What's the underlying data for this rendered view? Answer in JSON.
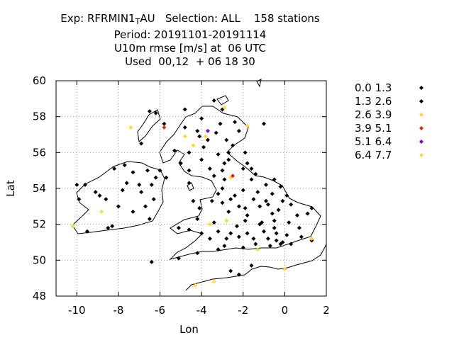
{
  "header": {
    "line1": "Exp: RFRMIN1_TAU   Selection: ALL    158 stations",
    "line2": "Period: 20191101-20191114",
    "line3": "U10m rmse [m/s] at  06 UTC",
    "line4": "Used  00,12  + 06 18 30"
  },
  "chart_data": {
    "type": "scatter",
    "title": "U10m rmse [m/s] at  06 UTC",
    "xlabel": "Lon",
    "ylabel": "Lat",
    "xlim": [
      -11,
      2
    ],
    "ylim": [
      48,
      60
    ],
    "xticks": [
      -10,
      -8,
      -6,
      -4,
      -2,
      0,
      2
    ],
    "yticks": [
      48,
      50,
      52,
      54,
      56,
      58,
      60
    ],
    "xtick_labels": [
      "-10",
      "-8",
      "-6",
      "-4",
      "-2",
      "0",
      "2"
    ],
    "ytick_labels": [
      "48",
      "50",
      "52",
      "54",
      "56",
      "58",
      "60"
    ],
    "grid": true,
    "legend_position": "right",
    "background": "coastline map of the British Isles",
    "series": [
      {
        "name": "0.0 1.3",
        "color": "#000000",
        "points": [
          [
            -3.4,
            58.9
          ],
          [
            -6.2,
            58.2
          ],
          [
            -3.0,
            58.4
          ],
          [
            -5.8,
            57.6
          ],
          [
            -4.8,
            57.4
          ],
          [
            -4.2,
            57.2
          ],
          [
            -3.3,
            57.1
          ],
          [
            -2.2,
            57.2
          ],
          [
            -4.1,
            56.9
          ],
          [
            -2.8,
            56.7
          ],
          [
            -2.5,
            56.4
          ],
          [
            -3.9,
            56.3
          ],
          [
            -5.3,
            56.1
          ],
          [
            -6.9,
            56.5
          ],
          [
            -4.6,
            56.0
          ],
          [
            -3.2,
            55.9
          ],
          [
            -1.9,
            56.0
          ],
          [
            -2.7,
            55.6
          ],
          [
            -4.0,
            55.6
          ],
          [
            -5.0,
            55.4
          ],
          [
            -3.6,
            55.1
          ],
          [
            -2.0,
            55.1
          ],
          [
            -4.6,
            55.0
          ],
          [
            -3.0,
            55.0
          ],
          [
            -1.6,
            55.1
          ],
          [
            -1.4,
            54.8
          ],
          [
            -2.9,
            54.5
          ],
          [
            -4.6,
            54.3
          ],
          [
            -1.6,
            54.5
          ],
          [
            -0.9,
            54.2
          ],
          [
            -0.5,
            54.5
          ],
          [
            -0.2,
            54.1
          ],
          [
            -3.0,
            54.0
          ],
          [
            -2.0,
            53.9
          ],
          [
            -1.3,
            53.8
          ],
          [
            -0.6,
            53.7
          ],
          [
            0.1,
            53.6
          ],
          [
            -2.6,
            53.4
          ],
          [
            -1.5,
            53.4
          ],
          [
            -0.9,
            53.3
          ],
          [
            -0.1,
            53.3
          ],
          [
            0.3,
            53.1
          ],
          [
            -1.2,
            53.0
          ],
          [
            -2.2,
            53.0
          ],
          [
            -3.0,
            53.2
          ],
          [
            -3.5,
            53.3
          ],
          [
            -4.4,
            53.3
          ],
          [
            -4.1,
            52.9
          ],
          [
            -2.7,
            52.7
          ],
          [
            -1.8,
            52.5
          ],
          [
            -0.6,
            52.6
          ],
          [
            0.6,
            52.5
          ],
          [
            1.1,
            52.6
          ],
          [
            1.3,
            52.9
          ],
          [
            -0.5,
            52.2
          ],
          [
            0.2,
            52.1
          ],
          [
            -1.2,
            52.0
          ],
          [
            -2.3,
            51.9
          ],
          [
            -3.4,
            52.1
          ],
          [
            -4.2,
            52.3
          ],
          [
            -3.2,
            51.6
          ],
          [
            -2.6,
            51.5
          ],
          [
            -1.8,
            51.5
          ],
          [
            -1.0,
            51.6
          ],
          [
            -0.4,
            51.5
          ],
          [
            0.1,
            51.4
          ],
          [
            0.8,
            51.3
          ],
          [
            1.3,
            51.1
          ],
          [
            -4.0,
            51.5
          ],
          [
            -4.6,
            51.7
          ],
          [
            -5.1,
            51.8
          ],
          [
            -3.6,
            51.2
          ],
          [
            -2.8,
            51.2
          ],
          [
            -1.5,
            51.2
          ],
          [
            -0.8,
            51.2
          ],
          [
            -0.2,
            50.9
          ],
          [
            0.3,
            50.9
          ],
          [
            -2.0,
            50.7
          ],
          [
            -2.9,
            50.8
          ],
          [
            -4.2,
            50.4
          ],
          [
            -5.1,
            50.1
          ],
          [
            -2.6,
            49.4
          ],
          [
            -2.2,
            49.2
          ],
          [
            -1.6,
            49.7
          ],
          [
            -6.6,
            55.0
          ],
          [
            -6.2,
            54.6
          ],
          [
            -5.7,
            54.6
          ],
          [
            -7.3,
            54.9
          ],
          [
            -6.4,
            54.2
          ],
          [
            -7.6,
            54.3
          ],
          [
            -8.2,
            55.1
          ],
          [
            -7.7,
            55.3
          ],
          [
            -7.0,
            54.2
          ],
          [
            -6.9,
            53.8
          ],
          [
            -6.3,
            53.4
          ],
          [
            -8.0,
            53.0
          ],
          [
            -8.9,
            53.6
          ],
          [
            -9.1,
            53.8
          ],
          [
            -8.6,
            53.4
          ],
          [
            -9.6,
            54.2
          ],
          [
            -10.0,
            54.2
          ],
          [
            -9.9,
            53.4
          ],
          [
            -8.3,
            51.9
          ],
          [
            -8.5,
            51.8
          ],
          [
            -9.5,
            51.6
          ],
          [
            -6.5,
            52.3
          ],
          [
            -7.3,
            52.7
          ],
          [
            -6.7,
            53.0
          ],
          [
            -7.8,
            53.9
          ],
          [
            -6.4,
            49.9
          ],
          [
            -2.7,
            56.0
          ],
          [
            -3.7,
            56.7
          ],
          [
            -2.4,
            57.7
          ],
          [
            -3.1,
            57.6
          ],
          [
            -4.0,
            57.9
          ],
          [
            -4.8,
            58.4
          ],
          [
            -1.1,
            52.1
          ],
          [
            -0.8,
            53.1
          ],
          [
            -1.9,
            52.9
          ],
          [
            -3.2,
            53.7
          ],
          [
            -2.4,
            53.6
          ],
          [
            -0.3,
            52.8
          ],
          [
            0.7,
            51.8
          ],
          [
            -2.2,
            51.3
          ],
          [
            -1.4,
            50.9
          ],
          [
            -0.7,
            50.8
          ],
          [
            -3.4,
            54.7
          ],
          [
            -2.9,
            55.4
          ],
          [
            -1.8,
            55.4
          ],
          [
            -0.5,
            51.8
          ],
          [
            -0.1,
            51.0
          ]
        ]
      },
      {
        "name": "1.3 2.6",
        "color": "#000000",
        "points": [
          [
            -6.5,
            58.3
          ],
          [
            -1.0,
            57.6
          ],
          [
            -0.4,
            51.1
          ],
          [
            -1.9,
            52.2
          ],
          [
            -6.0,
            55.0
          ],
          [
            -3.2,
            50.6
          ]
        ]
      },
      {
        "name": "2.6 3.9",
        "color": "#ffdc2f",
        "points": [
          [
            -2.9,
            58.5
          ],
          [
            -7.4,
            57.4
          ],
          [
            -1.8,
            57.5
          ],
          [
            -4.8,
            56.9
          ],
          [
            -4.4,
            56.4
          ],
          [
            -3.8,
            56.9
          ],
          [
            -2.6,
            54.6
          ],
          [
            -8.8,
            52.7
          ],
          [
            -10.2,
            51.9
          ],
          [
            -3.6,
            52.0
          ],
          [
            -2.8,
            52.2
          ],
          [
            -1.3,
            50.6
          ],
          [
            0.0,
            49.5
          ],
          [
            1.3,
            51.2
          ],
          [
            -3.4,
            48.8
          ],
          [
            -4.3,
            48.6
          ]
        ]
      },
      {
        "name": "3.9 5.1",
        "color": "#e02a00",
        "points": [
          [
            -5.8,
            57.4
          ],
          [
            -2.5,
            54.7
          ]
        ]
      },
      {
        "name": "5.1 6.4",
        "color": "#8a00cc",
        "points": [
          [
            -3.7,
            57.2
          ]
        ]
      },
      {
        "name": "6.4 7.7",
        "color": "#ffdc2f",
        "points": []
      }
    ]
  }
}
